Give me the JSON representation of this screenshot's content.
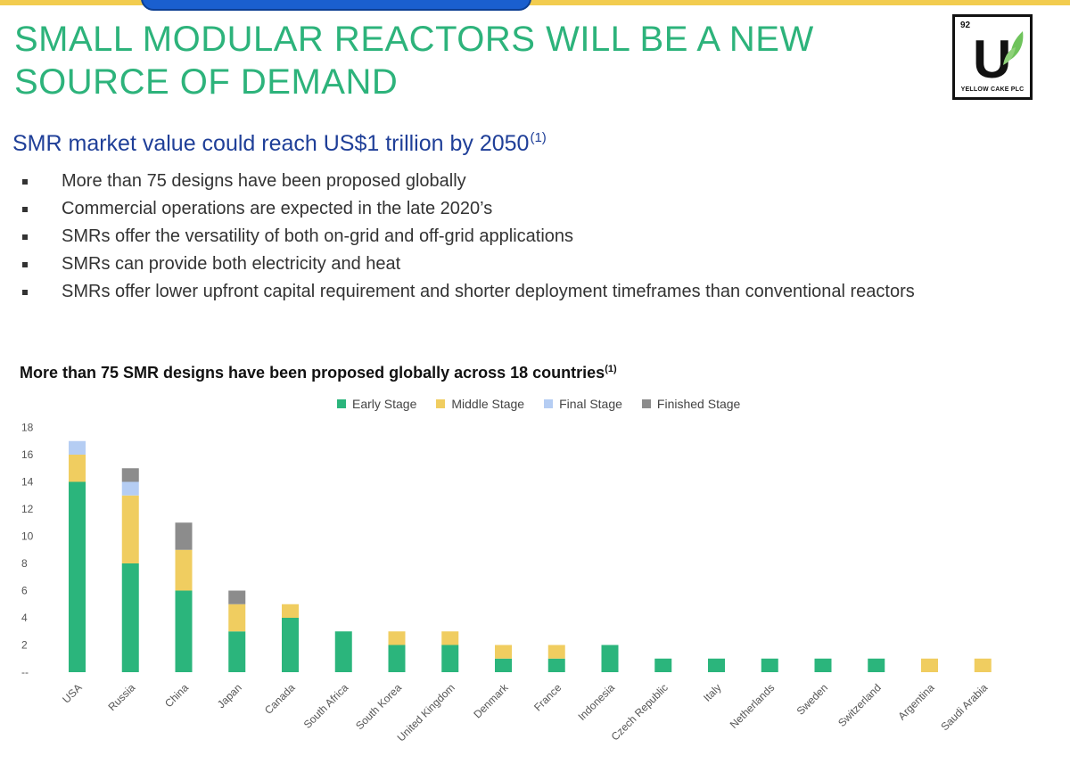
{
  "header": {
    "title_line1": "SMALL MODULAR REACTORS WILL BE A NEW",
    "title_line2": "SOURCE OF DEMAND",
    "subtitle": "SMR market value could reach US$1 trillion by 2050",
    "subtitle_note": "(1)"
  },
  "logo": {
    "number": "92",
    "letter": "U",
    "name": "YELLOW CAKE PLC"
  },
  "bullets": [
    "More than 75 designs have been proposed globally",
    "Commercial operations are expected in the late 2020’s",
    "SMRs offer the versatility of both on-grid and off-grid applications",
    "SMRs can provide both electricity and heat",
    "SMRs offer lower upfront capital requirement and shorter deployment timeframes than conventional reactors"
  ],
  "colors": {
    "title": "#2db37b",
    "subtitle": "#1f3f98",
    "accent_bar": "#f2cc4f"
  },
  "chart_data": {
    "type": "bar",
    "stacked": true,
    "title": "More than 75 SMR designs have been proposed globally across 18 countries",
    "title_note": "(1)",
    "legend_position": "top-center",
    "grid": false,
    "ylim": [
      0,
      18
    ],
    "yticks": [
      "--",
      "2",
      "4",
      "6",
      "8",
      "10",
      "12",
      "14",
      "16",
      "18"
    ],
    "categories": [
      "USA",
      "Russia",
      "China",
      "Japan",
      "Canada",
      "South Africa",
      "South Korea",
      "United Kingdom",
      "Denmark",
      "France",
      "Indonesia",
      "Czech Republic",
      "Italy",
      "Netherlands",
      "Sweden",
      "Switzerland",
      "Argentina",
      "Saudi Arabia"
    ],
    "series": [
      {
        "name": "Early Stage",
        "color": "#2bb57c",
        "values": [
          14,
          8,
          6,
          3,
          4,
          3,
          2,
          2,
          1,
          1,
          2,
          1,
          1,
          1,
          1,
          1,
          0,
          0
        ]
      },
      {
        "name": "Middle Stage",
        "color": "#f0cd60",
        "values": [
          2,
          5,
          3,
          2,
          1,
          0,
          1,
          1,
          1,
          1,
          0,
          0,
          0,
          0,
          0,
          0,
          1,
          1
        ]
      },
      {
        "name": "Final Stage",
        "color": "#b5cdf3",
        "values": [
          1,
          1,
          0,
          0,
          0,
          0,
          0,
          0,
          0,
          0,
          0,
          0,
          0,
          0,
          0,
          0,
          0,
          0
        ]
      },
      {
        "name": "Finished Stage",
        "color": "#8c8c8c",
        "values": [
          0,
          1,
          2,
          1,
          0,
          0,
          0,
          0,
          0,
          0,
          0,
          0,
          0,
          0,
          0,
          0,
          0,
          0
        ]
      }
    ]
  }
}
